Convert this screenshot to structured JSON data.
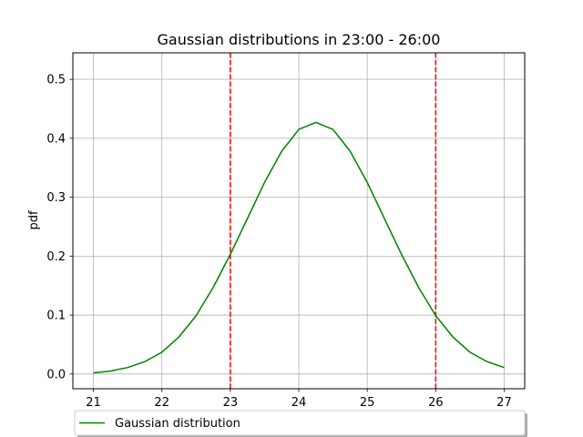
{
  "chart_data": {
    "type": "line",
    "title": "Gaussian distributions in 23:00 - 26:00",
    "xlabel": "",
    "ylabel": "pdf",
    "xlim": [
      20.7,
      27.3
    ],
    "ylim": [
      -0.025,
      0.545
    ],
    "xticks": [
      21,
      22,
      23,
      24,
      25,
      26,
      27
    ],
    "yticks": [
      0.0,
      0.1,
      0.2,
      0.3,
      0.4,
      0.5
    ],
    "grid": true,
    "legend_position": "bottom-center",
    "vlines": [
      {
        "x": 23,
        "color": "#ff0000",
        "style": "dashed"
      },
      {
        "x": 26,
        "color": "#ff0000",
        "style": "dashed"
      }
    ],
    "series": [
      {
        "name": "Gaussian distribution",
        "color": "#008000",
        "x": [
          21.0,
          21.25,
          21.5,
          21.75,
          22.0,
          22.25,
          22.5,
          22.75,
          23.0,
          23.25,
          23.5,
          23.75,
          24.0,
          24.25,
          24.5,
          24.75,
          25.0,
          25.25,
          25.5,
          25.75,
          26.0,
          26.25,
          26.5,
          26.75,
          27.0
        ],
        "values": [
          0.002,
          0.005,
          0.011,
          0.021,
          0.037,
          0.063,
          0.099,
          0.147,
          0.203,
          0.264,
          0.325,
          0.378,
          0.415,
          0.427,
          0.415,
          0.378,
          0.325,
          0.264,
          0.203,
          0.147,
          0.099,
          0.063,
          0.037,
          0.021,
          0.011
        ]
      }
    ]
  }
}
